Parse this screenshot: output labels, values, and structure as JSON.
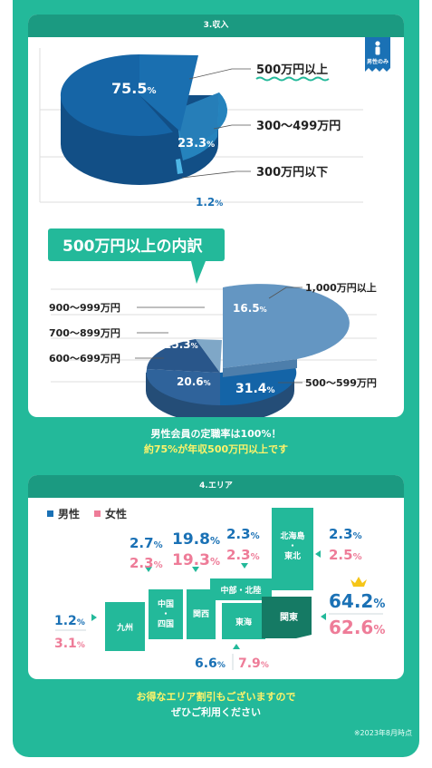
{
  "income": {
    "header": "3.収入",
    "badge": "男性のみ",
    "legend": [
      "500万円以上",
      "300〜499万円",
      "300万円以下"
    ],
    "breakdown_title": "500万円以上の内訳",
    "breakdown_legend": [
      "1,000万円以上",
      "900〜999万円",
      "700〜899万円",
      "600〜699万円",
      "500〜599万円"
    ]
  },
  "income_caption": {
    "line1": "男性会員の定職率は100%！",
    "line2": "約75%が年収500万円以上です"
  },
  "area": {
    "header": "4.エリア",
    "legend_male": "男性",
    "legend_female": "女性",
    "regions": {
      "hokkaido": "北海島・東北",
      "chubu": "中部・北陸",
      "kanto": "関東",
      "kansai": "関西",
      "tokai": "東海",
      "chugoku": "中国・四国",
      "kyushu": "九州"
    }
  },
  "area_caption": {
    "line1": "お得なエリア割引もございますので",
    "line2": "ぜひご利用ください"
  },
  "footnote": "※2023年8月時点",
  "colors": {
    "green": "#23b99a",
    "dark_green": "#1b9a81",
    "male": "#1a71b5",
    "female": "#ee7c98"
  },
  "chart_data": [
    {
      "type": "pie",
      "categories": [
        "500万円以上",
        "300〜499万円",
        "300万円以下"
      ],
      "values": [
        75.5,
        23.3,
        1.2
      ],
      "title": "3.収入"
    },
    {
      "type": "pie",
      "categories": [
        "1,000万円以上",
        "500〜599万円",
        "600〜699万円",
        "700〜899万円",
        "900〜999万円"
      ],
      "values": [
        16.5,
        31.4,
        20.6,
        25.3,
        6.2
      ],
      "title": "500万円以上の内訳"
    },
    {
      "type": "bar",
      "title": "4.エリア",
      "categories": [
        "北海島・東北",
        "中国・四国",
        "関西",
        "中部・北陸",
        "関東",
        "九州",
        "東海"
      ],
      "series": [
        {
          "name": "男性",
          "values": [
            2.3,
            2.7,
            19.8,
            2.3,
            64.2,
            1.2,
            6.6
          ]
        },
        {
          "name": "女性",
          "values": [
            2.5,
            2.3,
            19.3,
            2.3,
            62.6,
            3.1,
            7.9
          ]
        }
      ]
    }
  ]
}
